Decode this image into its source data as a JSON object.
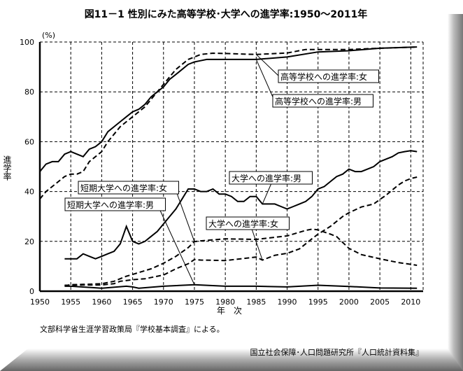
{
  "chart_data": {
    "type": "line",
    "title": "図11－1 性別にみた高等学校･大学への進学率:1950～2011年",
    "ylabel": "進学率",
    "yunit": "(%)",
    "xlabel": "年　次",
    "xlim": [
      1950,
      2012
    ],
    "ylim": [
      0,
      100
    ],
    "xticks": [
      1950,
      1955,
      1960,
      1965,
      1970,
      1975,
      1980,
      1985,
      1990,
      1995,
      2000,
      2005,
      2010
    ],
    "yticks": [
      0,
      20,
      40,
      60,
      80,
      100
    ],
    "grid": true,
    "series": [
      {
        "name": "高等学校への進学率:女",
        "style": "dashed",
        "points": [
          [
            1950,
            37
          ],
          [
            1951,
            40
          ],
          [
            1952,
            42
          ],
          [
            1953,
            44
          ],
          [
            1954,
            46
          ],
          [
            1955,
            47
          ],
          [
            1956,
            47
          ],
          [
            1957,
            48
          ],
          [
            1958,
            52
          ],
          [
            1959,
            54
          ],
          [
            1960,
            56
          ],
          [
            1961,
            60
          ],
          [
            1962,
            63
          ],
          [
            1963,
            66
          ],
          [
            1964,
            68
          ],
          [
            1965,
            70
          ],
          [
            1966,
            72
          ],
          [
            1967,
            74
          ],
          [
            1968,
            77
          ],
          [
            1969,
            80
          ],
          [
            1970,
            83
          ],
          [
            1971,
            86
          ],
          [
            1972,
            89
          ],
          [
            1973,
            91
          ],
          [
            1974,
            93
          ],
          [
            1975,
            94
          ],
          [
            1976,
            95
          ],
          [
            1978,
            95.5
          ],
          [
            1980,
            95.4
          ],
          [
            1985,
            95
          ],
          [
            1990,
            95.6
          ],
          [
            1993,
            97
          ],
          [
            1995,
            97
          ],
          [
            2000,
            97
          ],
          [
            2005,
            97.5
          ],
          [
            2011,
            98
          ]
        ]
      },
      {
        "name": "高等学校への進学率:男",
        "style": "solid",
        "points": [
          [
            1950,
            48
          ],
          [
            1951,
            51
          ],
          [
            1952,
            52
          ],
          [
            1953,
            52
          ],
          [
            1954,
            55
          ],
          [
            1955,
            56
          ],
          [
            1956,
            55
          ],
          [
            1957,
            54
          ],
          [
            1958,
            57
          ],
          [
            1959,
            58
          ],
          [
            1960,
            60
          ],
          [
            1961,
            64
          ],
          [
            1962,
            66
          ],
          [
            1963,
            68
          ],
          [
            1964,
            70
          ],
          [
            1965,
            72
          ],
          [
            1966,
            73
          ],
          [
            1967,
            75
          ],
          [
            1968,
            78
          ],
          [
            1969,
            80
          ],
          [
            1970,
            82
          ],
          [
            1971,
            85
          ],
          [
            1972,
            87
          ],
          [
            1973,
            89
          ],
          [
            1974,
            91
          ],
          [
            1975,
            92
          ],
          [
            1976,
            92.5
          ],
          [
            1977,
            93
          ],
          [
            1980,
            93
          ],
          [
            1985,
            93
          ],
          [
            1990,
            94
          ],
          [
            1995,
            96
          ],
          [
            2000,
            96.5
          ],
          [
            2005,
            97.5
          ],
          [
            2011,
            98
          ]
        ]
      },
      {
        "name": "大学への進学率:男",
        "style": "solid",
        "points": [
          [
            1954,
            13
          ],
          [
            1955,
            13
          ],
          [
            1956,
            13
          ],
          [
            1957,
            15
          ],
          [
            1958,
            14
          ],
          [
            1959,
            13
          ],
          [
            1960,
            14
          ],
          [
            1961,
            15
          ],
          [
            1962,
            16
          ],
          [
            1963,
            19
          ],
          [
            1964,
            26
          ],
          [
            1965,
            20
          ],
          [
            1966,
            19
          ],
          [
            1967,
            20
          ],
          [
            1968,
            22
          ],
          [
            1969,
            24
          ],
          [
            1970,
            27
          ],
          [
            1971,
            30
          ],
          [
            1972,
            33
          ],
          [
            1973,
            37
          ],
          [
            1974,
            41
          ],
          [
            1975,
            41
          ],
          [
            1976,
            40
          ],
          [
            1977,
            40
          ],
          [
            1978,
            41
          ],
          [
            1979,
            39
          ],
          [
            1980,
            39
          ],
          [
            1981,
            38
          ],
          [
            1982,
            36
          ],
          [
            1983,
            36
          ],
          [
            1984,
            38
          ],
          [
            1985,
            38
          ],
          [
            1986,
            35
          ],
          [
            1988,
            35
          ],
          [
            1989,
            34
          ],
          [
            1990,
            33
          ],
          [
            1991,
            34
          ],
          [
            1992,
            35
          ],
          [
            1993,
            36
          ],
          [
            1994,
            38
          ],
          [
            1995,
            41
          ],
          [
            1996,
            42
          ],
          [
            1997,
            44
          ],
          [
            1998,
            46
          ],
          [
            1999,
            47
          ],
          [
            2000,
            49
          ],
          [
            2001,
            48
          ],
          [
            2002,
            48
          ],
          [
            2003,
            49
          ],
          [
            2004,
            50
          ],
          [
            2005,
            52
          ],
          [
            2006,
            53
          ],
          [
            2007,
            54
          ],
          [
            2008,
            55.5
          ],
          [
            2009,
            56
          ],
          [
            2010,
            56.4
          ],
          [
            2011,
            56
          ]
        ]
      },
      {
        "name": "大学への進学率:女",
        "style": "dashed",
        "points": [
          [
            1954,
            2.4
          ],
          [
            1955,
            2.4
          ],
          [
            1957,
            2.5
          ],
          [
            1960,
            2.5
          ],
          [
            1962,
            3
          ],
          [
            1963,
            4
          ],
          [
            1965,
            4.6
          ],
          [
            1967,
            5
          ],
          [
            1970,
            6.5
          ],
          [
            1972,
            9
          ],
          [
            1974,
            11
          ],
          [
            1975,
            12.7
          ],
          [
            1976,
            12.5
          ],
          [
            1980,
            12.3
          ],
          [
            1985,
            13.7
          ],
          [
            1986,
            12.5
          ],
          [
            1988,
            14.4
          ],
          [
            1990,
            15.2
          ],
          [
            1992,
            17
          ],
          [
            1994,
            21
          ],
          [
            1995,
            22.9
          ],
          [
            1997,
            26
          ],
          [
            1999,
            30
          ],
          [
            2000,
            31.5
          ],
          [
            2002,
            33.8
          ],
          [
            2004,
            35
          ],
          [
            2005,
            36.8
          ],
          [
            2006,
            38.5
          ],
          [
            2007,
            40.6
          ],
          [
            2008,
            42.6
          ],
          [
            2009,
            44.2
          ],
          [
            2010,
            45.2
          ],
          [
            2011,
            45.8
          ]
        ]
      },
      {
        "name": "短期大学への進学率:女",
        "style": "dashed",
        "points": [
          [
            1954,
            2.2
          ],
          [
            1955,
            2.6
          ],
          [
            1958,
            2.8
          ],
          [
            1960,
            3
          ],
          [
            1962,
            4
          ],
          [
            1964,
            6
          ],
          [
            1965,
            6.7
          ],
          [
            1966,
            7.5
          ],
          [
            1968,
            9
          ],
          [
            1970,
            11.2
          ],
          [
            1972,
            14
          ],
          [
            1974,
            17.5
          ],
          [
            1975,
            19.9
          ],
          [
            1976,
            20.2
          ],
          [
            1980,
            21
          ],
          [
            1985,
            20.8
          ],
          [
            1990,
            22.2
          ],
          [
            1993,
            24.4
          ],
          [
            1994,
            24.9
          ],
          [
            1995,
            24.6
          ],
          [
            1997,
            22.9
          ],
          [
            1998,
            21.9
          ],
          [
            2000,
            17.2
          ],
          [
            2002,
            14.7
          ],
          [
            2005,
            13
          ],
          [
            2008,
            11.5
          ],
          [
            2010,
            10.8
          ],
          [
            2011,
            10.4
          ]
        ]
      },
      {
        "name": "短期大学への進学率:男",
        "style": "solid",
        "points": [
          [
            1954,
            2
          ],
          [
            1955,
            2
          ],
          [
            1960,
            1.2
          ],
          [
            1964,
            2
          ],
          [
            1965,
            1.7
          ],
          [
            1966,
            1.2
          ],
          [
            1970,
            2
          ],
          [
            1975,
            2.6
          ],
          [
            1980,
            2
          ],
          [
            1985,
            2
          ],
          [
            1990,
            1.7
          ],
          [
            1995,
            2.4
          ],
          [
            2000,
            1.9
          ],
          [
            2005,
            1.3
          ],
          [
            2011,
            1.2
          ]
        ]
      }
    ],
    "annotations": {
      "source_note": "文部科学省生涯学習政策局『学校基本調査』による。",
      "credit": "国立社会保障･人口問題研究所『人口統計資料集』"
    }
  }
}
